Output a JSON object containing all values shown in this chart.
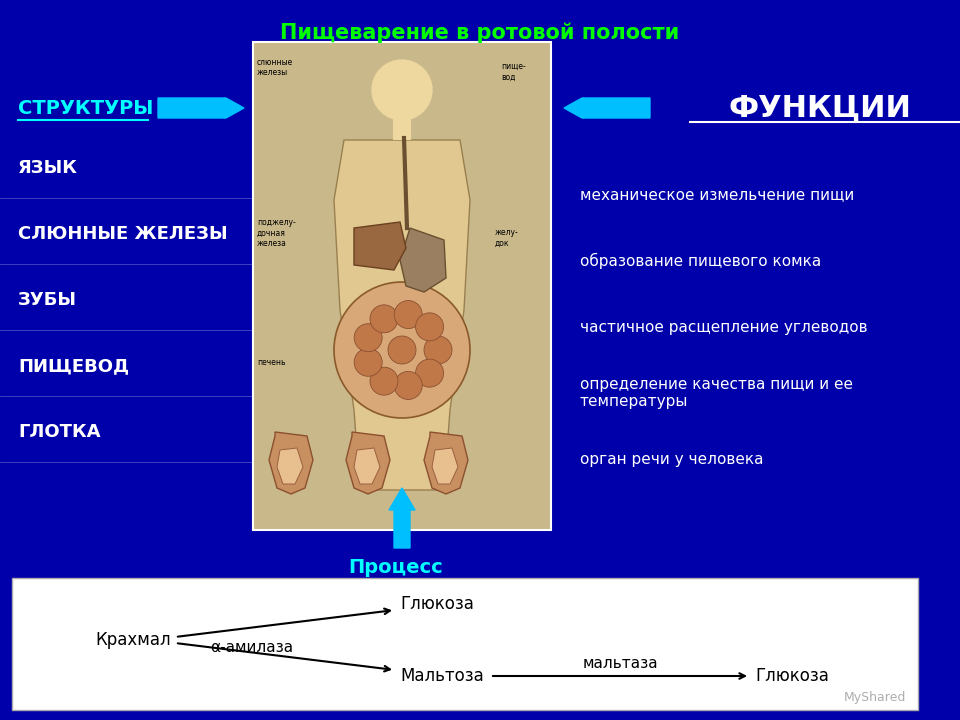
{
  "title": "Пищеварение в ротовой полости",
  "title_color": "#00FF00",
  "bg_color": "#0000AA",
  "left_header": "СТРУКТУРЫ",
  "left_header_color": "#00FFFF",
  "right_header": "ФУНКЦИИ",
  "right_header_color": "#FFFFFF",
  "structures": [
    "ЯЗЫК",
    "СЛЮННЫЕ ЖЕЛЕЗЫ",
    "ЗУБЫ",
    "ПИЩЕВОД",
    "ГЛОТКА"
  ],
  "functions": [
    "механическое измельчение пищи",
    "образование пищевого комка",
    "частичное расщепление углеводов",
    "определение качества пищи и ее\nтемпературы",
    "орган речи у человека"
  ],
  "process_label": "Процесс",
  "process_color": "#00FFFF",
  "bottom_bg": "#FFFFFF",
  "arrow_color": "#00BFFF",
  "bottom_text_left": "Крахмал",
  "bottom_text_mid_top": "Глюкоза",
  "bottom_text_mid_mid": "α-амилаза",
  "bottom_text_mid_bot": "Мальтоза",
  "bottom_text_right_top": "мальтаза",
  "bottom_text_right_bot": "Глюкоза",
  "watermark": "MyShared"
}
